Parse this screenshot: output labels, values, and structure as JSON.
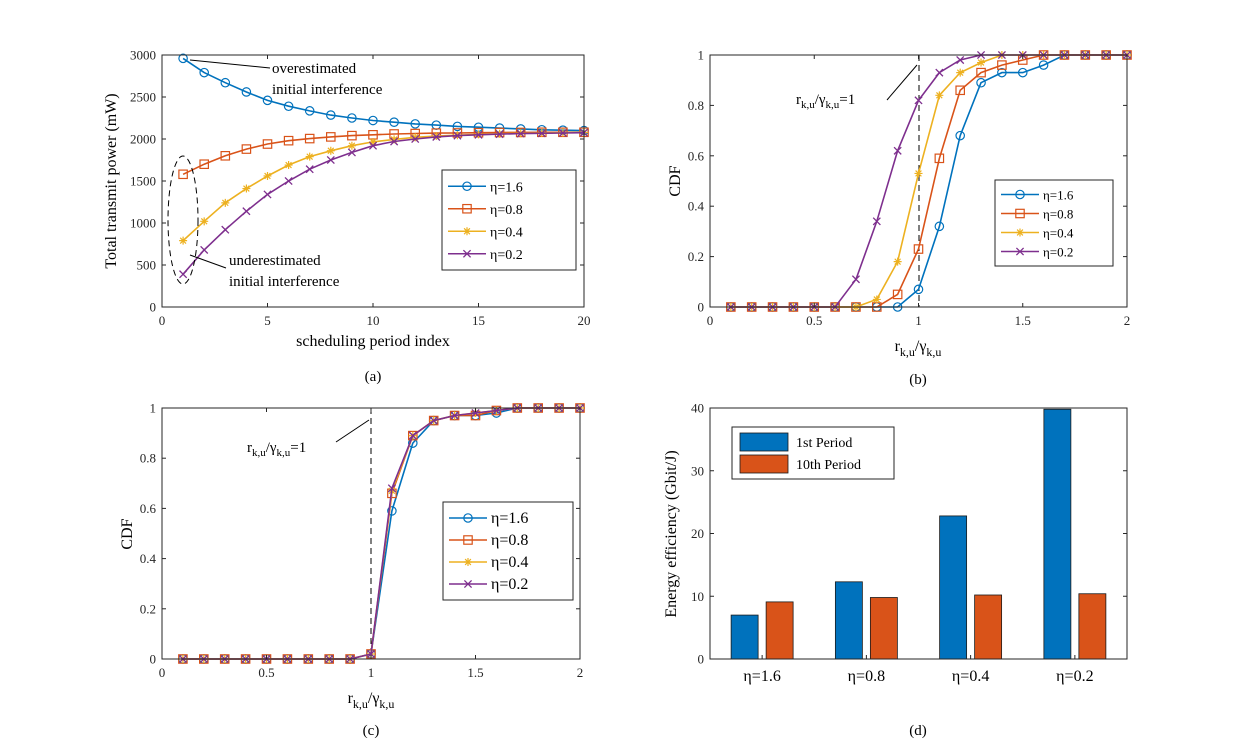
{
  "colors": {
    "series_blue": "#0072BD",
    "series_orange": "#D95319",
    "series_yellow": "#EDB120",
    "series_purple": "#7E2F8E",
    "bar_first": "#0072BD",
    "bar_tenth": "#D95319"
  },
  "chart_data": [
    {
      "panel": "a",
      "type": "line",
      "caption": "(a)",
      "xlabel": "scheduling period index",
      "ylabel": "Total transmit power (mW)",
      "xlim": [
        0,
        20
      ],
      "ylim": [
        0,
        3000
      ],
      "xticks": [
        0,
        5,
        10,
        15,
        20
      ],
      "yticks": [
        0,
        500,
        1000,
        1500,
        2000,
        2500,
        3000
      ],
      "x": [
        1,
        2,
        3,
        4,
        5,
        6,
        7,
        8,
        9,
        10,
        11,
        12,
        13,
        14,
        15,
        16,
        17,
        18,
        19,
        20
      ],
      "series": [
        {
          "name": "η=1.6",
          "marker": "circle",
          "values": [
            2960,
            2790,
            2670,
            2560,
            2460,
            2390,
            2335,
            2285,
            2250,
            2220,
            2200,
            2180,
            2165,
            2150,
            2140,
            2130,
            2120,
            2110,
            2105,
            2100
          ]
        },
        {
          "name": "η=0.8",
          "marker": "square",
          "values": [
            1580,
            1700,
            1800,
            1880,
            1940,
            1980,
            2005,
            2025,
            2040,
            2050,
            2060,
            2065,
            2070,
            2072,
            2075,
            2077,
            2078,
            2080,
            2080,
            2080
          ]
        },
        {
          "name": "η=0.4",
          "marker": "star",
          "values": [
            790,
            1020,
            1240,
            1410,
            1560,
            1690,
            1790,
            1860,
            1920,
            1965,
            1995,
            2020,
            2035,
            2045,
            2055,
            2062,
            2068,
            2072,
            2075,
            2078
          ]
        },
        {
          "name": "η=0.2",
          "marker": "x",
          "values": [
            390,
            680,
            920,
            1140,
            1340,
            1500,
            1640,
            1750,
            1840,
            1920,
            1970,
            2000,
            2025,
            2040,
            2050,
            2058,
            2064,
            2068,
            2072,
            2075
          ]
        }
      ],
      "legend_position": "right",
      "annotations": {
        "over_line1": "overestimated",
        "over_line2": "initial interference",
        "under_line1": "underestimated",
        "under_line2": "initial interference"
      }
    },
    {
      "panel": "b",
      "type": "line",
      "caption": "(b)",
      "xlabel_main": "r",
      "xlabel_sub1": "k,u",
      "xlabel_mid": "/γ",
      "xlabel_sub2": "k,u",
      "ylabel": "CDF",
      "xlim": [
        0,
        2
      ],
      "ylim": [
        0,
        1
      ],
      "xticks": [
        0,
        0.5,
        1,
        1.5,
        2
      ],
      "yticks": [
        0,
        0.2,
        0.4,
        0.6,
        0.8,
        1
      ],
      "x": [
        0.1,
        0.2,
        0.3,
        0.4,
        0.5,
        0.6,
        0.7,
        0.8,
        0.9,
        1.0,
        1.1,
        1.2,
        1.3,
        1.4,
        1.5,
        1.6,
        1.7,
        1.8,
        1.9,
        2.0
      ],
      "series": [
        {
          "name": "η=1.6",
          "marker": "circle",
          "values": [
            0,
            0,
            0,
            0,
            0,
            0,
            0,
            0,
            0,
            0.07,
            0.32,
            0.68,
            0.89,
            0.93,
            0.93,
            0.96,
            1,
            1,
            1,
            1
          ]
        },
        {
          "name": "η=0.8",
          "marker": "square",
          "values": [
            0,
            0,
            0,
            0,
            0,
            0,
            0,
            0,
            0.05,
            0.23,
            0.59,
            0.86,
            0.93,
            0.96,
            0.98,
            1,
            1,
            1,
            1,
            1
          ]
        },
        {
          "name": "η=0.4",
          "marker": "star",
          "values": [
            0,
            0,
            0,
            0,
            0,
            0,
            0,
            0.03,
            0.18,
            0.53,
            0.84,
            0.93,
            0.97,
            1,
            1,
            1,
            1,
            1,
            1,
            1
          ]
        },
        {
          "name": "η=0.2",
          "marker": "x",
          "values": [
            0,
            0,
            0,
            0,
            0,
            0,
            0.11,
            0.34,
            0.62,
            0.82,
            0.93,
            0.98,
            1,
            1,
            1,
            1,
            1,
            1,
            1,
            1
          ]
        }
      ],
      "legend_position": "right",
      "reference_x": 1,
      "annotation": {
        "main": "r",
        "sub1": "k,u",
        "mid": "/γ",
        "sub2": "k,u",
        "tail": "=1"
      }
    },
    {
      "panel": "c",
      "type": "line",
      "caption": "(c)",
      "xlabel_main": "r",
      "xlabel_sub1": "k,u",
      "xlabel_mid": "/γ",
      "xlabel_sub2": "k,u",
      "ylabel": "CDF",
      "xlim": [
        0,
        2
      ],
      "ylim": [
        0,
        1
      ],
      "xticks": [
        0,
        0.5,
        1,
        1.5,
        2
      ],
      "yticks": [
        0,
        0.2,
        0.4,
        0.6,
        0.8,
        1
      ],
      "x": [
        0.1,
        0.2,
        0.3,
        0.4,
        0.5,
        0.6,
        0.7,
        0.8,
        0.9,
        1.0,
        1.1,
        1.2,
        1.3,
        1.4,
        1.5,
        1.6,
        1.7,
        1.8,
        1.9,
        2.0
      ],
      "series": [
        {
          "name": "η=1.6",
          "marker": "circle",
          "values": [
            0,
            0,
            0,
            0,
            0,
            0,
            0,
            0,
            0,
            0.02,
            0.59,
            0.86,
            0.95,
            0.97,
            0.97,
            0.98,
            1,
            1,
            1,
            1
          ]
        },
        {
          "name": "η=0.8",
          "marker": "square",
          "values": [
            0,
            0,
            0,
            0,
            0,
            0,
            0,
            0,
            0,
            0.02,
            0.66,
            0.89,
            0.95,
            0.97,
            0.97,
            0.99,
            1,
            1,
            1,
            1
          ]
        },
        {
          "name": "η=0.4",
          "marker": "star",
          "values": [
            0,
            0,
            0,
            0,
            0,
            0,
            0,
            0,
            0,
            0.02,
            0.67,
            0.89,
            0.95,
            0.97,
            0.98,
            0.99,
            1,
            1,
            1,
            1
          ]
        },
        {
          "name": "η=0.2",
          "marker": "x",
          "values": [
            0,
            0,
            0,
            0,
            0,
            0,
            0,
            0,
            0,
            0.02,
            0.68,
            0.89,
            0.95,
            0.97,
            0.98,
            0.99,
            1,
            1,
            1,
            1
          ]
        }
      ],
      "legend_position": "right",
      "reference_x": 1,
      "annotation": {
        "main": "r",
        "sub1": "k,u",
        "mid": "/γ",
        "sub2": "k,u",
        "tail": "=1"
      }
    },
    {
      "panel": "d",
      "type": "bar",
      "caption": "(d)",
      "ylabel": "Energy efficiency (Gbit/J)",
      "categories": [
        "η=1.6",
        "η=0.8",
        "η=0.4",
        "η=0.2"
      ],
      "ylim": [
        0,
        40
      ],
      "yticks": [
        0,
        10,
        20,
        30,
        40
      ],
      "series": [
        {
          "name": "1st Period",
          "values": [
            7.0,
            12.3,
            22.8,
            39.8
          ]
        },
        {
          "name": "10th Period",
          "values": [
            9.1,
            9.8,
            10.2,
            10.4
          ]
        }
      ],
      "legend_position": "top-left"
    }
  ]
}
